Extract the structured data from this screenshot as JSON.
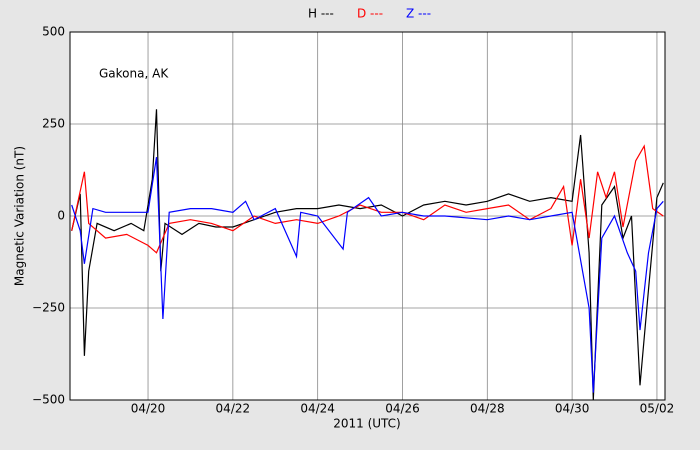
{
  "chart_data": {
    "type": "line",
    "legend": "top",
    "annotation": "Gakona, AK",
    "xlabel": "2011 (UTC)",
    "ylabel": "Magnetic Variation (nT)",
    "xlim": [
      18.16,
      32.19
    ],
    "xticks": [
      {
        "value": 20,
        "label": "04/20"
      },
      {
        "value": 22,
        "label": "04/22"
      },
      {
        "value": 24,
        "label": "04/24"
      },
      {
        "value": 26,
        "label": "04/26"
      },
      {
        "value": 28,
        "label": "04/28"
      },
      {
        "value": 30,
        "label": "04/30"
      },
      {
        "value": 32,
        "label": "05/02"
      }
    ],
    "ylim": [
      -500,
      500
    ],
    "yticks": [
      {
        "value": -500,
        "label": "−500"
      },
      {
        "value": -250,
        "label": "−250"
      },
      0,
      250,
      500
    ],
    "grid": true,
    "series": [
      {
        "name": "H ---",
        "color": "#000000",
        "x": [
          18.2,
          18.4,
          18.5,
          18.6,
          18.8,
          19.2,
          19.6,
          19.9,
          20.1,
          20.2,
          20.3,
          20.4,
          20.8,
          21.2,
          21.6,
          22.0,
          22.5,
          23.0,
          23.5,
          24.0,
          24.5,
          25.0,
          25.5,
          26.0,
          26.5,
          27.0,
          27.5,
          28.0,
          28.5,
          29.0,
          29.5,
          30.0,
          30.2,
          30.4,
          30.5,
          30.7,
          31.0,
          31.2,
          31.4,
          31.6,
          31.8,
          32.0,
          32.15
        ],
        "values": [
          -40,
          60,
          -380,
          -150,
          -20,
          -40,
          -20,
          -40,
          100,
          290,
          -150,
          -20,
          -50,
          -20,
          -30,
          -30,
          -10,
          10,
          20,
          20,
          30,
          20,
          30,
          0,
          30,
          40,
          30,
          40,
          60,
          40,
          50,
          40,
          220,
          -100,
          -500,
          30,
          80,
          -60,
          0,
          -460,
          -200,
          50,
          90
        ]
      },
      {
        "name": "D ---",
        "color": "#ff0000",
        "x": [
          18.2,
          18.5,
          18.6,
          19.0,
          19.5,
          20.0,
          20.2,
          20.5,
          21.0,
          21.5,
          22.0,
          22.5,
          23.0,
          23.5,
          24.0,
          24.5,
          25.0,
          25.5,
          26.0,
          26.5,
          27.0,
          27.5,
          28.0,
          28.5,
          29.0,
          29.5,
          29.8,
          30.0,
          30.2,
          30.4,
          30.6,
          30.8,
          31.0,
          31.2,
          31.5,
          31.7,
          31.9,
          32.15
        ],
        "values": [
          -40,
          120,
          -20,
          -60,
          -50,
          -80,
          -100,
          -20,
          -10,
          -20,
          -40,
          0,
          -20,
          -10,
          -20,
          0,
          30,
          10,
          10,
          -10,
          30,
          10,
          20,
          30,
          -10,
          20,
          80,
          -80,
          100,
          -60,
          120,
          50,
          120,
          -30,
          150,
          190,
          20,
          0
        ]
      },
      {
        "name": "Z ---",
        "color": "#0000ff",
        "x": [
          18.2,
          18.4,
          18.5,
          18.7,
          19.0,
          19.5,
          20.0,
          20.2,
          20.35,
          20.5,
          21.0,
          21.5,
          22.0,
          22.3,
          22.5,
          23.0,
          23.5,
          23.6,
          24.0,
          24.6,
          24.7,
          25.2,
          25.5,
          26.0,
          26.5,
          27.0,
          28.0,
          28.5,
          29.0,
          29.5,
          30.0,
          30.4,
          30.5,
          30.7,
          31.0,
          31.3,
          31.5,
          31.6,
          31.8,
          32.0,
          32.15
        ],
        "values": [
          30,
          -40,
          -130,
          20,
          10,
          10,
          10,
          160,
          -280,
          10,
          20,
          20,
          10,
          40,
          -10,
          20,
          -110,
          10,
          0,
          -90,
          10,
          50,
          0,
          10,
          0,
          0,
          -10,
          0,
          -10,
          0,
          10,
          -250,
          -480,
          -60,
          0,
          -100,
          -150,
          -310,
          -100,
          20,
          40
        ]
      }
    ]
  }
}
